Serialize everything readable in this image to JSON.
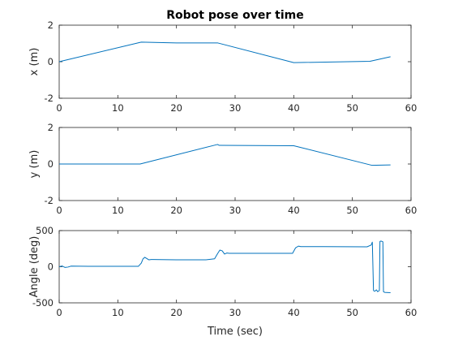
{
  "figure": {
    "title": "Robot pose over time",
    "xlabel": "Time (sec)"
  },
  "chart_data": [
    {
      "type": "line",
      "title": "Robot pose over time",
      "xlabel": "",
      "ylabel": "x (m)",
      "xlim": [
        0,
        60
      ],
      "ylim": [
        -2,
        2
      ],
      "xticks": [
        0,
        10,
        20,
        30,
        40,
        50,
        60
      ],
      "yticks": [
        -2,
        0,
        2
      ],
      "grid": false,
      "color": "#0072BD",
      "x": [
        0,
        14,
        20,
        27,
        40,
        53,
        56.5
      ],
      "y": [
        0,
        1.07,
        1.03,
        1.03,
        -0.05,
        0.02,
        0.27
      ]
    },
    {
      "type": "line",
      "xlabel": "",
      "ylabel": "y (m)",
      "xlim": [
        0,
        60
      ],
      "ylim": [
        -2,
        2
      ],
      "xticks": [
        0,
        10,
        20,
        30,
        40,
        50,
        60
      ],
      "yticks": [
        -2,
        0,
        2
      ],
      "grid": false,
      "color": "#0072BD",
      "x": [
        0,
        13.8,
        27,
        27.3,
        40,
        53.3,
        56.5
      ],
      "y": [
        0,
        0,
        1.07,
        1.02,
        1.0,
        -0.07,
        -0.05
      ]
    },
    {
      "type": "line",
      "xlabel": "Time (sec)",
      "ylabel": "Angle (deg)",
      "xlim": [
        0,
        60
      ],
      "ylim": [
        -500,
        500
      ],
      "xticks": [
        0,
        10,
        20,
        30,
        40,
        50,
        60
      ],
      "yticks": [
        -500,
        0,
        500
      ],
      "grid": false,
      "color": "#0072BD",
      "x": [
        0,
        0.5,
        1,
        1.5,
        2,
        5,
        13.5,
        14,
        14.3,
        14.6,
        15,
        15.3,
        15.7,
        16,
        20,
        25,
        26.5,
        27,
        27.4,
        27.8,
        28.2,
        28.6,
        29,
        30,
        35,
        39.8,
        40.3,
        40.8,
        41.2,
        45,
        52.5,
        53.2,
        53.4,
        53.6,
        53.8,
        54.1,
        54.3,
        54.6,
        54.7,
        54.9,
        55.2,
        55.3,
        55.5,
        56.5
      ],
      "y": [
        0,
        10,
        -10,
        -5,
        8,
        5,
        5,
        50,
        110,
        130,
        110,
        95,
        100,
        100,
        95,
        95,
        110,
        180,
        230,
        220,
        175,
        190,
        185,
        185,
        185,
        185,
        260,
        285,
        278,
        278,
        275,
        300,
        340,
        -330,
        -340,
        -320,
        -345,
        -330,
        350,
        355,
        345,
        -345,
        -355,
        -360
      ]
    }
  ]
}
